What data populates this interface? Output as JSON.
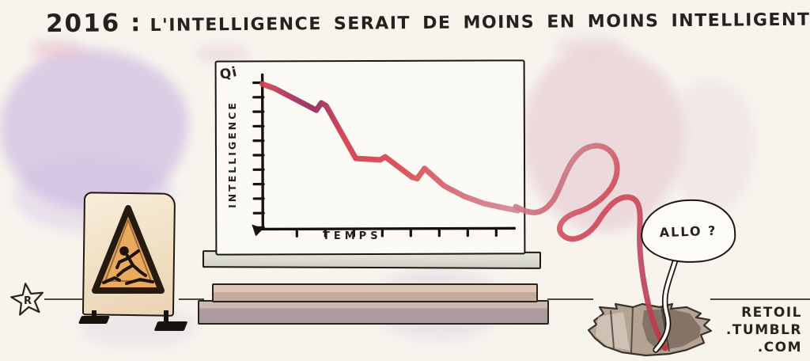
{
  "caption": {
    "year": "2016 :",
    "text": "L'INTELLIGENCE SERAIT DE MOINS EN MOINS INTELLIGENTE ..."
  },
  "chart_data": {
    "type": "line",
    "title": "",
    "y_axis_unit_label": "Qi",
    "ylabel": "INTELLIGENCE",
    "xlabel": "TEMPS",
    "x": [
      0,
      5,
      22,
      24,
      26,
      38,
      48,
      50,
      61,
      63,
      66,
      74,
      82,
      90,
      98,
      104
    ],
    "values": [
      98,
      95,
      80,
      85,
      83,
      47,
      46,
      48,
      34,
      33,
      40,
      28,
      21,
      16,
      13,
      11
    ],
    "xlim": [
      0,
      100
    ],
    "ylim": [
      0,
      100
    ],
    "layout": {
      "x_ticks": 8,
      "y_ticks": 11,
      "grid": false,
      "numeric_tick_labels": false,
      "line_exits_plot_right": true,
      "legend": "none"
    },
    "line_color_start": "#d24550",
    "line_color_mid": "#8f2d5c",
    "line_color_crimson": "#d63b4b",
    "line_color_end": "#cf8b94"
  },
  "speech_bubble": {
    "text": "ALLO ?"
  },
  "signature": {
    "lines": [
      "RETOIL",
      ".TUMBLR",
      ".COM"
    ]
  },
  "artist_logo": {
    "letter": "R"
  },
  "palette": {
    "paper": "#f7f4ee",
    "wash_purple": "#c2abdd",
    "wash_pink": "#e4c3cd",
    "cord_red": "#cb4f60",
    "sign_cream": "#f5e8d0",
    "sign_orange": "#e9a95c",
    "ink": "#26211c"
  }
}
